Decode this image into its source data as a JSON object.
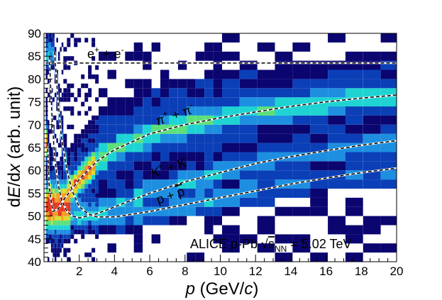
{
  "chart_data": {
    "type": "heatmap",
    "title": "",
    "xlabel": {
      "main": "p",
      "unit_open": " (GeV/",
      "unit_var": "c",
      "unit_close": ")"
    },
    "ylabel": {
      "pre": "d",
      "var1": "E",
      "mid": "/d",
      "var2": "x",
      "post": " (arb. unit)"
    },
    "xlim": [
      0,
      20
    ],
    "ylim": [
      40,
      90
    ],
    "xticks": [
      2,
      4,
      6,
      8,
      10,
      12,
      14,
      16,
      18,
      20
    ],
    "yticks": [
      40,
      45,
      50,
      55,
      60,
      65,
      70,
      75,
      80,
      85,
      90
    ],
    "annotation": {
      "prefix": "ALICE p-Pb ",
      "sqrt_sym": "√",
      "s": "s",
      "sub": "NN",
      "suffix": " = 5.02 TeV"
    },
    "curves": [
      {
        "id": "electron",
        "label": {
          "base": "e",
          "sup1": "+",
          "mid": " + e",
          "sup2": "-"
        },
        "points": [
          [
            0.1,
            83.5
          ],
          [
            20,
            83.5
          ]
        ]
      },
      {
        "id": "pion",
        "label": {
          "base": "π",
          "sup1": "+",
          "mid": " + π",
          "sup2": "-"
        },
        "points": [
          [
            0.2,
            66
          ],
          [
            0.3,
            56
          ],
          [
            0.5,
            51
          ],
          [
            0.8,
            51.5
          ],
          [
            1.2,
            54
          ],
          [
            2,
            58
          ],
          [
            3,
            62
          ],
          [
            4,
            64.5
          ],
          [
            6,
            68
          ],
          [
            8,
            70
          ],
          [
            10,
            71.5
          ],
          [
            12,
            72.8
          ],
          [
            14,
            74
          ],
          [
            16,
            75
          ],
          [
            18,
            75.8
          ],
          [
            20,
            76.5
          ]
        ]
      },
      {
        "id": "kaon",
        "label": {
          "base": "K",
          "sup1": "+",
          "mid": " + K",
          "sup2": "-"
        },
        "points": [
          [
            0.3,
            85
          ],
          [
            0.45,
            72
          ],
          [
            0.6,
            63
          ],
          [
            0.8,
            57
          ],
          [
            1.0,
            53.5
          ],
          [
            1.3,
            51
          ],
          [
            1.6,
            50
          ],
          [
            2,
            49.6
          ],
          [
            3,
            50.5
          ],
          [
            4,
            52
          ],
          [
            6,
            55
          ],
          [
            8,
            57.5
          ],
          [
            10,
            59.5
          ],
          [
            12,
            61.5
          ],
          [
            14,
            63
          ],
          [
            16,
            64.3
          ],
          [
            18,
            65.5
          ],
          [
            20,
            66.5
          ]
        ]
      },
      {
        "id": "proton",
        "label": {
          "base": "p + ",
          "anti": "p",
          "sup1": "",
          "mid": "",
          "sup2": ""
        },
        "points": [
          [
            0.6,
            86
          ],
          [
            0.8,
            75
          ],
          [
            1.0,
            67
          ],
          [
            1.3,
            60
          ],
          [
            1.6,
            55.5
          ],
          [
            2.0,
            52
          ],
          [
            2.5,
            50.5
          ],
          [
            3,
            49.8
          ],
          [
            4,
            49.8
          ],
          [
            6,
            51
          ],
          [
            8,
            52.5
          ],
          [
            10,
            54
          ],
          [
            12,
            55.5
          ],
          [
            14,
            57
          ],
          [
            16,
            58.3
          ],
          [
            18,
            59.5
          ],
          [
            20,
            60.5
          ]
        ]
      }
    ],
    "colorscale": [
      "#0b0570",
      "#0b3fb7",
      "#1e8fe0",
      "#1fd3d3",
      "#5de07a",
      "#d8dc2f",
      "#f19a22",
      "#e5331b"
    ]
  }
}
